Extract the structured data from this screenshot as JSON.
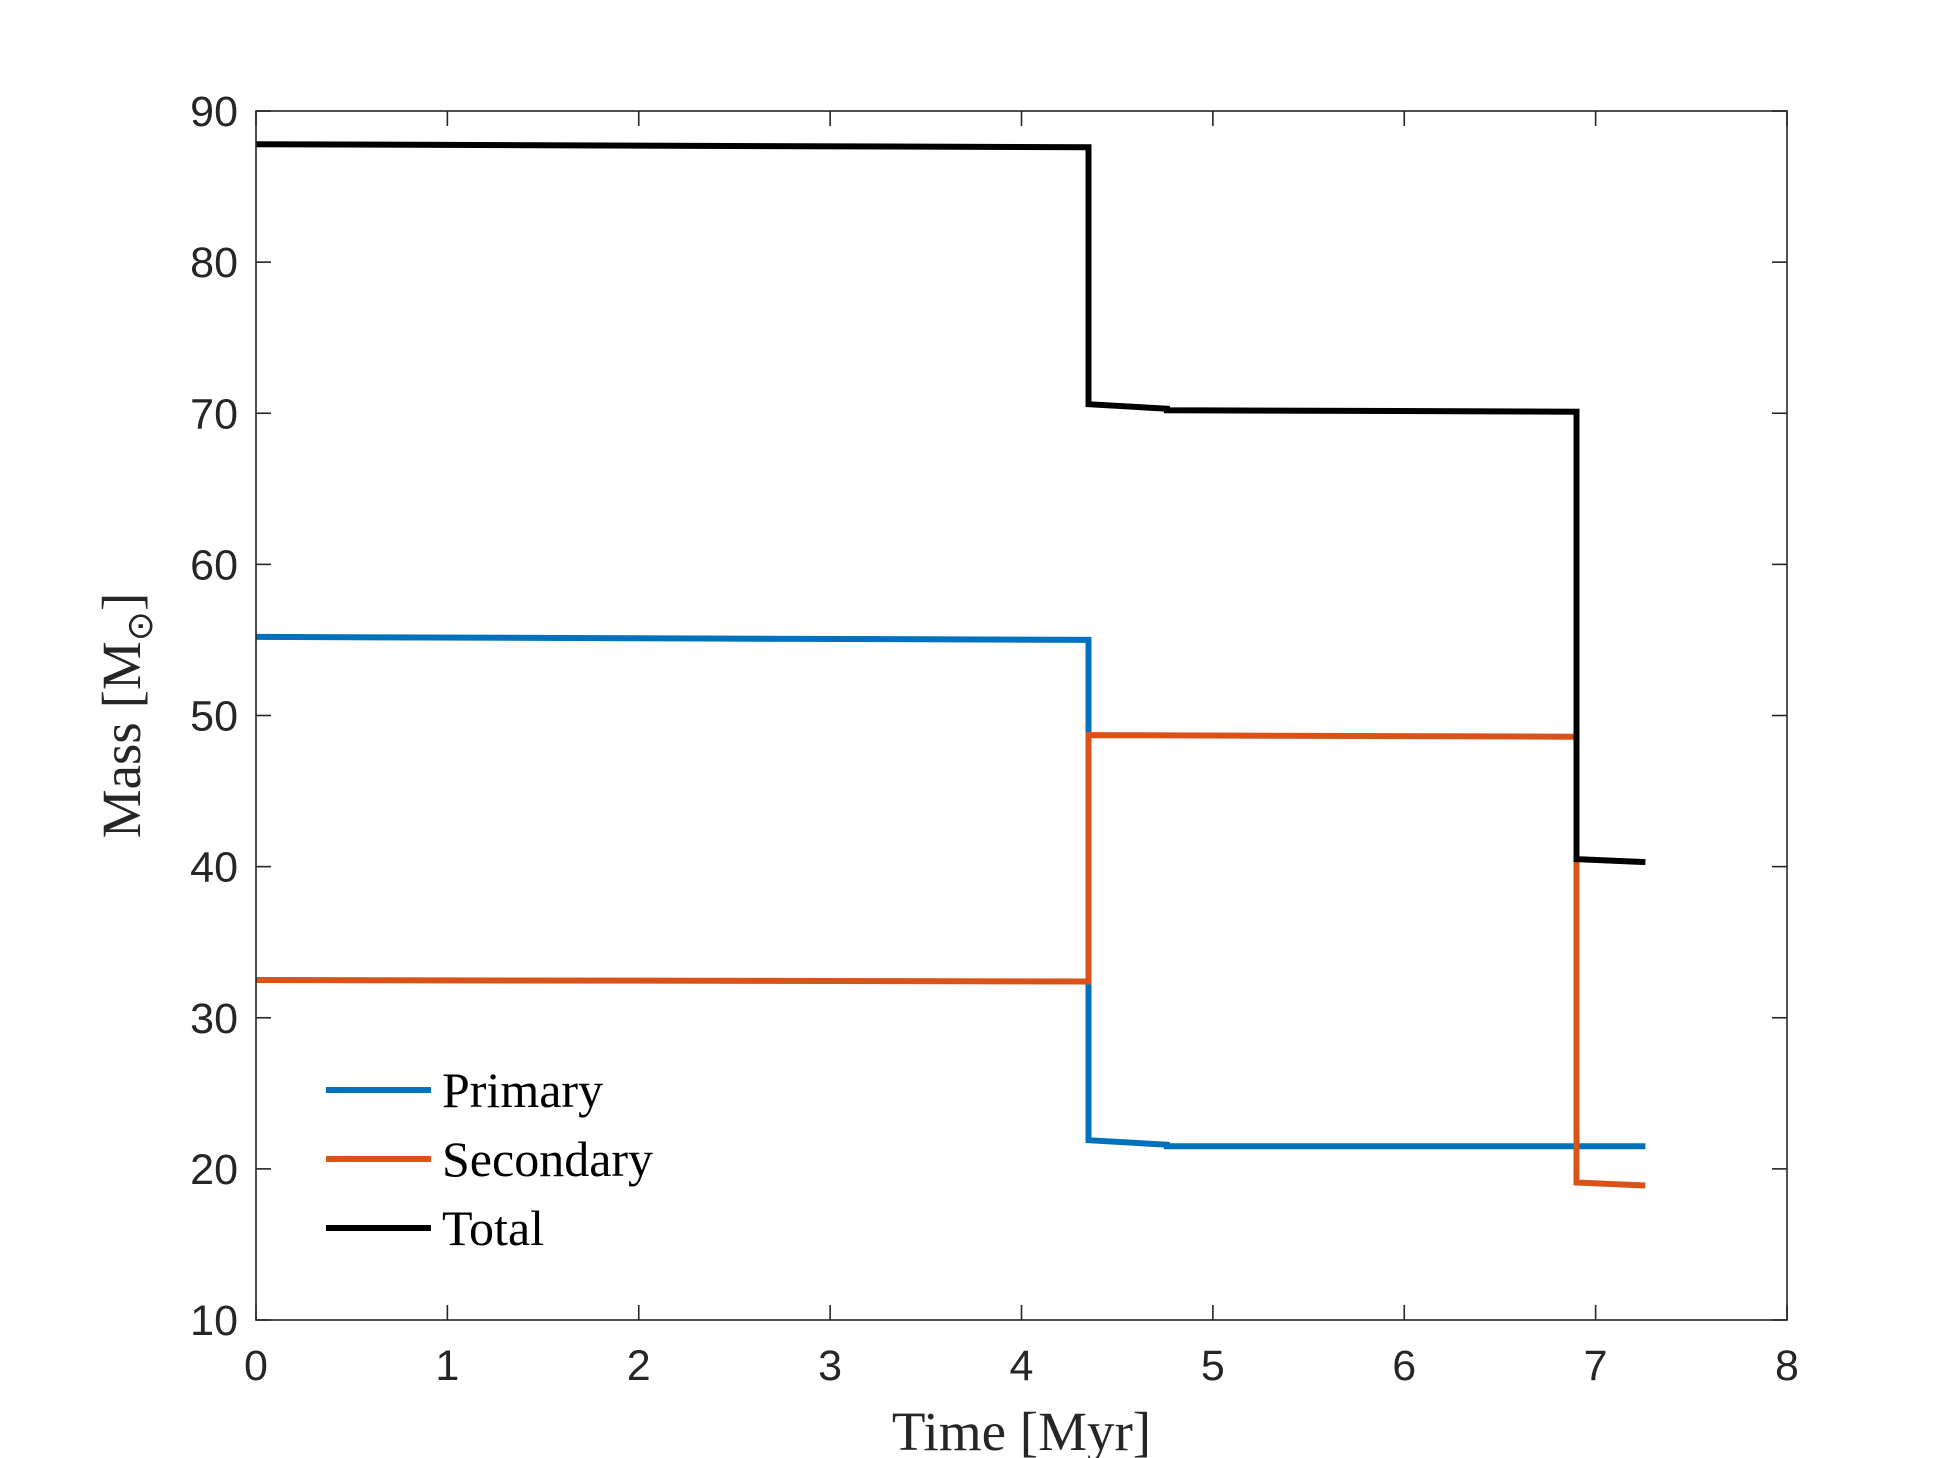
{
  "chart_data": {
    "type": "line",
    "title": "",
    "xlabel": "Time [Myr]",
    "ylabel_text": "Mass [M",
    "ylabel_subscript": "⊙",
    "ylabel_close": "]",
    "xlim": [
      0,
      8
    ],
    "ylim": [
      10,
      90
    ],
    "xticks": [
      0,
      1,
      2,
      3,
      4,
      5,
      6,
      7,
      8
    ],
    "yticks": [
      10,
      20,
      30,
      40,
      50,
      60,
      70,
      80,
      90
    ],
    "grid": false,
    "legend_position": "bottom-left",
    "series": [
      {
        "name": "Primary",
        "color": "#0072BD",
        "points": [
          [
            0,
            55.2
          ],
          [
            4.35,
            55.0
          ],
          [
            4.35,
            21.9
          ],
          [
            4.76,
            21.6
          ],
          [
            4.76,
            21.5
          ],
          [
            7.26,
            21.5
          ]
        ]
      },
      {
        "name": "Secondary",
        "color": "#D95319",
        "points": [
          [
            0,
            32.5
          ],
          [
            4.35,
            32.4
          ],
          [
            4.35,
            48.7
          ],
          [
            6.9,
            48.6
          ],
          [
            6.9,
            19.1
          ],
          [
            7.26,
            18.9
          ]
        ]
      },
      {
        "name": "Total",
        "color": "#000000",
        "points": [
          [
            0,
            87.8
          ],
          [
            4.35,
            87.6
          ],
          [
            4.35,
            70.6
          ],
          [
            4.76,
            70.3
          ],
          [
            4.76,
            70.2
          ],
          [
            6.9,
            70.1
          ],
          [
            6.9,
            40.5
          ],
          [
            7.26,
            40.3
          ]
        ]
      }
    ]
  }
}
